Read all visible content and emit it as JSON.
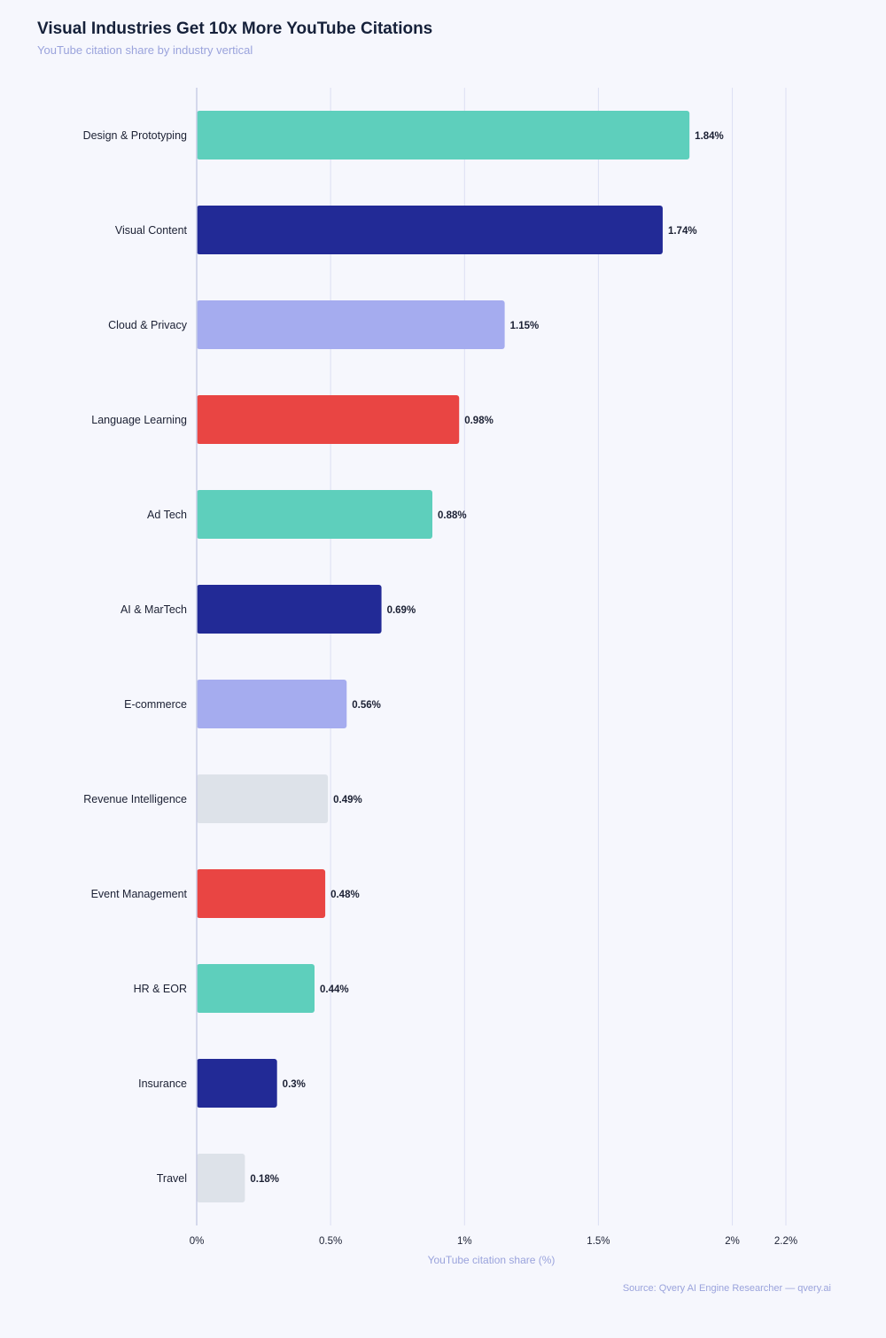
{
  "header": {
    "title": "Visual Industries Get 10x More YouTube Citations",
    "subtitle": "YouTube citation share by industry vertical"
  },
  "footer": {
    "source": "Source: Qvery AI Engine Researcher — qvery.ai"
  },
  "chart_data": {
    "type": "bar",
    "orientation": "horizontal",
    "title": "Visual Industries Get 10x More YouTube Citations",
    "subtitle": "YouTube citation share by industry vertical",
    "xlabel": "YouTube citation share (%)",
    "ylabel": "",
    "xlim": [
      0,
      2.2
    ],
    "xticks": [
      0,
      0.5,
      1,
      1.5,
      2,
      2.2
    ],
    "xtick_labels": [
      "0%",
      "0.5%",
      "1%",
      "1.5%",
      "2%",
      "2.2%"
    ],
    "grid": "vertical",
    "legend": "none",
    "categories": [
      "Design & Prototyping",
      "Visual Content",
      "Cloud & Privacy",
      "Language Learning",
      "Ad Tech",
      "AI & MarTech",
      "E-commerce",
      "Revenue Intelligence",
      "Event Management",
      "HR & EOR",
      "Insurance",
      "Travel"
    ],
    "values": [
      1.84,
      1.74,
      1.15,
      0.98,
      0.88,
      0.69,
      0.56,
      0.49,
      0.48,
      0.44,
      0.3,
      0.18
    ],
    "value_labels": [
      "1.84%",
      "1.74%",
      "1.15%",
      "0.98%",
      "0.88%",
      "0.69%",
      "0.56%",
      "0.49%",
      "0.48%",
      "0.44%",
      "0.3%",
      "0.18%"
    ],
    "colors": [
      "#5ecfbc",
      "#222a96",
      "#a5acef",
      "#e94543",
      "#5ecfbc",
      "#222a96",
      "#a5acef",
      "#dde2e9",
      "#e94543",
      "#5ecfbc",
      "#222a96",
      "#dde2e9"
    ],
    "gridline_color": "#dcdff3",
    "axis_color": "#c9cde6"
  }
}
